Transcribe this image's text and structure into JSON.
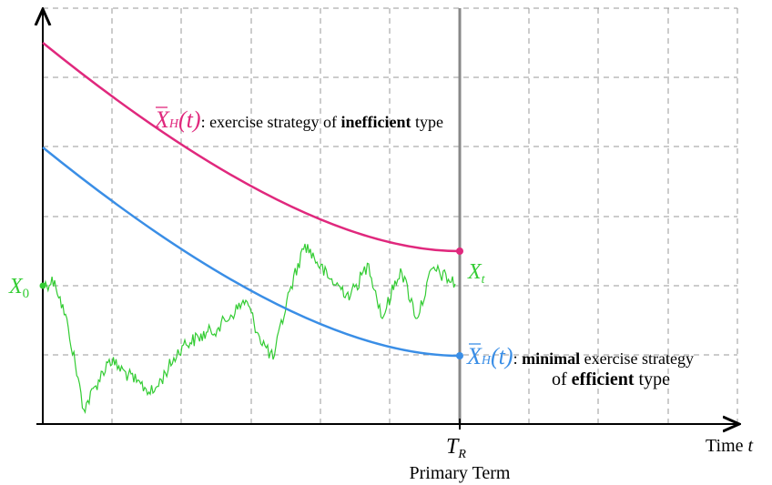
{
  "labels": {
    "upper_curve": {
      "symbol": "X",
      "subscript": "H",
      "argument": "(t)",
      "prefix": ": exercise strategy of ",
      "emphasis": "inefficient",
      "suffix": " type"
    },
    "lower_curve": {
      "symbol": "X",
      "subscript": "H",
      "argument": "(t)",
      "prefix": ": ",
      "emphasis": "minimal",
      "suffix": " exercise strategy",
      "line2_prefix": "of ",
      "line2_emphasis": "efficient",
      "line2_suffix": " type"
    },
    "start": {
      "symbol": "X",
      "subscript": "0"
    },
    "process": {
      "symbol": "X",
      "subscript": "t"
    },
    "term": {
      "symbol": "T",
      "subscript": "R",
      "caption": "Primary Term"
    },
    "time_axis": {
      "word": "Time",
      "variable": "t"
    }
  }
}
